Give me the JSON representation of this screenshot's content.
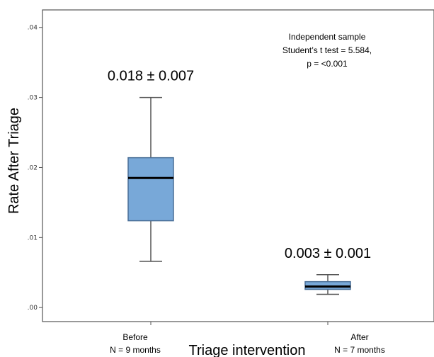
{
  "chart_data": {
    "type": "box",
    "ylabel": "Rate After Triage",
    "xlabel": "Triage intervention",
    "ylim": [
      -0.002,
      0.0425
    ],
    "yticks": [
      ".00",
      ".01",
      ".02",
      ".03",
      ".04"
    ],
    "ytick_values": [
      0.0,
      0.01,
      0.02,
      0.03,
      0.04
    ],
    "colors": {
      "box_fill": "#78a8d8",
      "box_stroke": "#4a6f97",
      "median": "#000000"
    },
    "categories": [
      {
        "label": "Before",
        "sublabel": "N = 9 months"
      },
      {
        "label": "After",
        "sublabel": "N = 7 months"
      }
    ],
    "boxes": [
      {
        "whisker_low": 0.0066,
        "q1": 0.0124,
        "median": 0.0185,
        "q3": 0.0214,
        "whisker_high": 0.03,
        "stat_text": "0.018 ± 0.007"
      },
      {
        "whisker_low": 0.0019,
        "q1": 0.0026,
        "median": 0.003,
        "q3": 0.0037,
        "whisker_high": 0.0047,
        "stat_text": "0.003 ± 0.001"
      }
    ],
    "annotation": [
      "Independent sample",
      "Student’s t test = 5.584,",
      "p = <0.001"
    ]
  }
}
